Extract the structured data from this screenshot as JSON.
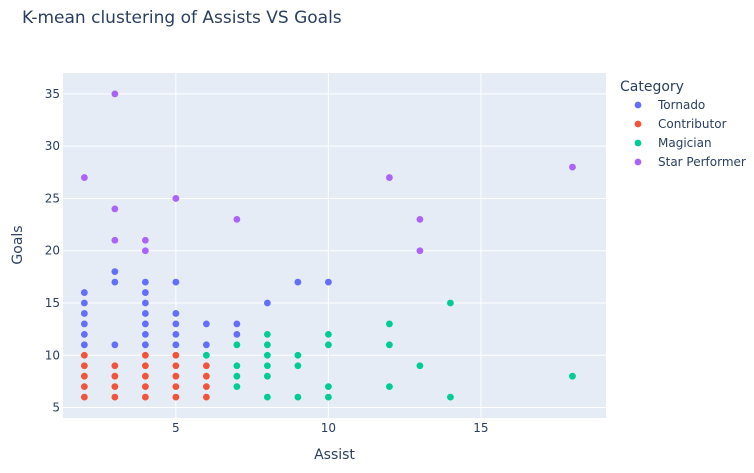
{
  "chart_data": {
    "type": "scatter",
    "title": "K-mean clustering of Assists VS Goals",
    "xlabel": "Assist",
    "ylabel": "Goals",
    "xlim": [
      1.3,
      19.1
    ],
    "ylim": [
      4.0,
      37.0
    ],
    "xticks": [
      5,
      10,
      15
    ],
    "yticks": [
      5,
      10,
      15,
      20,
      25,
      30,
      35
    ],
    "grid": true,
    "legend": {
      "title": "Category",
      "placement": "right"
    },
    "background": "#e5ecf6",
    "series": [
      {
        "name": "Tornado",
        "color": "#636efa",
        "points": [
          [
            2,
            11
          ],
          [
            2,
            12
          ],
          [
            2,
            13
          ],
          [
            2,
            14
          ],
          [
            2,
            15
          ],
          [
            2,
            16
          ],
          [
            3,
            11
          ],
          [
            3,
            17
          ],
          [
            3,
            18
          ],
          [
            4,
            11
          ],
          [
            4,
            12
          ],
          [
            4,
            13
          ],
          [
            4,
            14
          ],
          [
            4,
            15
          ],
          [
            4,
            16
          ],
          [
            4,
            17
          ],
          [
            5,
            11
          ],
          [
            5,
            12
          ],
          [
            5,
            13
          ],
          [
            5,
            14
          ],
          [
            5,
            17
          ],
          [
            6,
            11
          ],
          [
            6,
            13
          ],
          [
            7,
            12
          ],
          [
            7,
            13
          ],
          [
            8,
            15
          ],
          [
            9,
            17
          ],
          [
            10,
            17
          ]
        ]
      },
      {
        "name": "Contributor",
        "color": "#ef553b",
        "points": [
          [
            2,
            6
          ],
          [
            2,
            7
          ],
          [
            2,
            8
          ],
          [
            2,
            9
          ],
          [
            2,
            10
          ],
          [
            3,
            6
          ],
          [
            3,
            7
          ],
          [
            3,
            8
          ],
          [
            3,
            9
          ],
          [
            4,
            6
          ],
          [
            4,
            7
          ],
          [
            4,
            8
          ],
          [
            4,
            9
          ],
          [
            4,
            10
          ],
          [
            5,
            6
          ],
          [
            5,
            7
          ],
          [
            5,
            8
          ],
          [
            5,
            9
          ],
          [
            5,
            10
          ],
          [
            6,
            6
          ],
          [
            6,
            7
          ],
          [
            6,
            8
          ],
          [
            6,
            9
          ]
        ]
      },
      {
        "name": "Magician",
        "color": "#00cc96",
        "points": [
          [
            6,
            10
          ],
          [
            7,
            7
          ],
          [
            7,
            8
          ],
          [
            7,
            9
          ],
          [
            7,
            11
          ],
          [
            8,
            6
          ],
          [
            8,
            8
          ],
          [
            8,
            9
          ],
          [
            8,
            10
          ],
          [
            8,
            11
          ],
          [
            8,
            12
          ],
          [
            9,
            6
          ],
          [
            9,
            9
          ],
          [
            9,
            10
          ],
          [
            10,
            6
          ],
          [
            10,
            7
          ],
          [
            10,
            11
          ],
          [
            10,
            12
          ],
          [
            12,
            7
          ],
          [
            12,
            11
          ],
          [
            12,
            13
          ],
          [
            13,
            9
          ],
          [
            14,
            6
          ],
          [
            14,
            15
          ],
          [
            18,
            8
          ]
        ]
      },
      {
        "name": "Star Performer",
        "color": "#ab63fa",
        "points": [
          [
            2,
            27
          ],
          [
            3,
            21
          ],
          [
            3,
            24
          ],
          [
            3,
            35
          ],
          [
            4,
            20
          ],
          [
            4,
            21
          ],
          [
            5,
            25
          ],
          [
            7,
            23
          ],
          [
            12,
            27
          ],
          [
            13,
            20
          ],
          [
            13,
            23
          ],
          [
            18,
            28
          ]
        ]
      }
    ]
  }
}
